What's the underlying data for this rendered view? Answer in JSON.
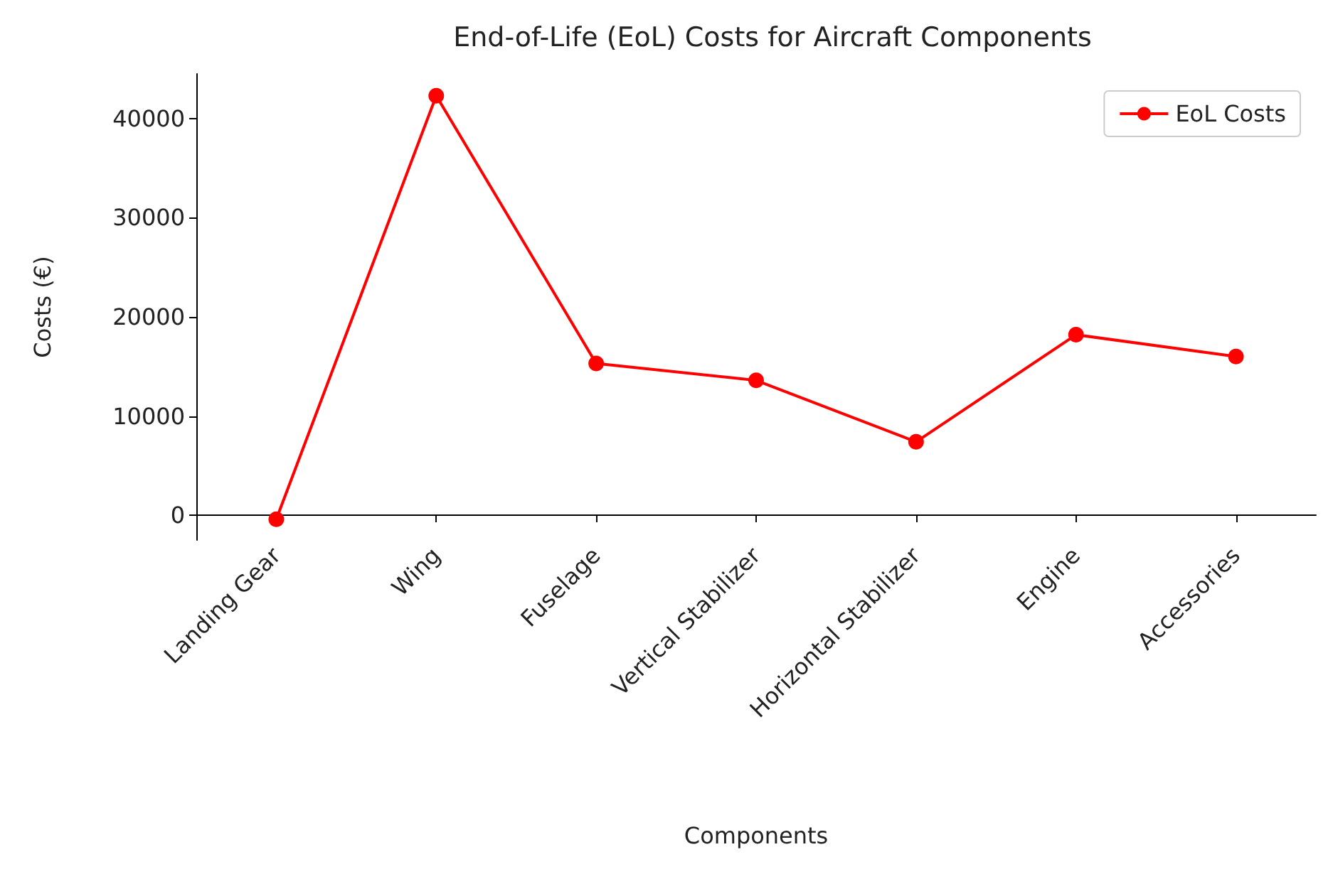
{
  "chart_data": {
    "type": "line",
    "title": "End-of-Life (EoL) Costs for Aircraft Components",
    "xlabel": "Components",
    "ylabel": "Costs (€)",
    "categories": [
      "Landing Gear",
      "Wing",
      "Fuselage",
      "Vertical Stabilizer",
      "Horizontal Stabilizer",
      "Engine",
      "Accessories"
    ],
    "series": [
      {
        "name": "EoL Costs",
        "color": "#ff0000",
        "values": [
          -400,
          42300,
          15300,
          13600,
          7400,
          18200,
          16000
        ]
      }
    ],
    "ylim": [
      -2500,
      44500
    ],
    "yticks": [
      0,
      10000,
      20000,
      30000,
      40000
    ],
    "grid": false,
    "legend": "top right",
    "marker": "circle",
    "line_style": "solid"
  }
}
